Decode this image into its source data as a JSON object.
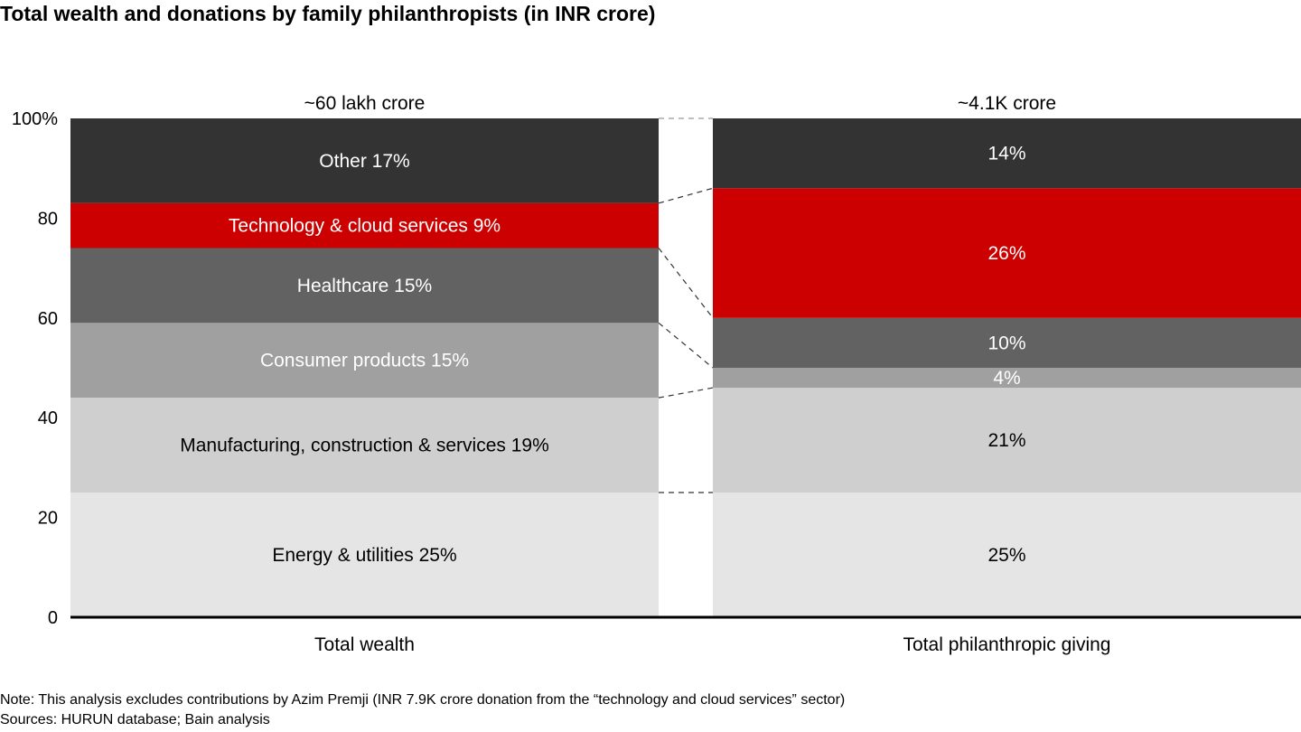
{
  "title": "Total wealth and donations by family philanthropists (in INR crore)",
  "chart_data": {
    "type": "bar",
    "stacked": true,
    "title": "Total wealth and donations by family philanthropists (in INR crore)",
    "ylim": [
      0,
      100
    ],
    "yticks": [
      0,
      20,
      40,
      60,
      80,
      100
    ],
    "ytick_labels": [
      "0",
      "20",
      "40",
      "60",
      "80",
      "100%"
    ],
    "categories": [
      "Total wealth",
      "Total philanthropic giving"
    ],
    "totals": [
      "~60 lakh crore",
      "~4.1K crore"
    ],
    "series": [
      {
        "name": "Energy & utilities",
        "color": "#E5E5E5",
        "text_color": "#000000",
        "values": [
          25,
          25
        ],
        "labels": [
          "Energy & utilities 25%",
          "25%"
        ]
      },
      {
        "name": "Manufacturing, construction & services",
        "color": "#CFCFCF",
        "text_color": "#000000",
        "values": [
          19,
          21
        ],
        "labels": [
          "Manufacturing, construction & services 19%",
          "21%"
        ]
      },
      {
        "name": "Consumer products",
        "color": "#A0A0A0",
        "text_color": "#FFFFFF",
        "values": [
          15,
          4
        ],
        "labels": [
          "Consumer products 15%",
          "4%"
        ]
      },
      {
        "name": "Healthcare",
        "color": "#626262",
        "text_color": "#FFFFFF",
        "values": [
          15,
          10
        ],
        "labels": [
          "Healthcare 15%",
          "10%"
        ]
      },
      {
        "name": "Technology & cloud services",
        "color": "#CC0000",
        "text_color": "#FFFFFF",
        "values": [
          9,
          26
        ],
        "labels": [
          "Technology & cloud services 9%",
          "26%"
        ]
      },
      {
        "name": "Other",
        "color": "#333333",
        "text_color": "#FFFFFF",
        "values": [
          17,
          14
        ],
        "labels": [
          "Other 17%",
          "14%"
        ]
      }
    ],
    "connectors": "dashed lines between segment boundaries",
    "grid": false,
    "legend": "none (labels inside segments)"
  },
  "notes": {
    "note": "Note: This analysis excludes contributions by Azim Premji (INR 7.9K crore donation from the “technology and cloud services” sector)",
    "sources": "Sources: HURUN database; Bain analysis"
  }
}
